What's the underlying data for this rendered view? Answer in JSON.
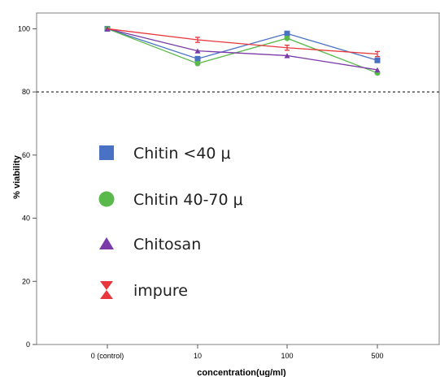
{
  "chart_data": {
    "type": "line",
    "xlabel": "concentration(ug/ml)",
    "ylabel": "% viability",
    "categories": [
      "0 (control)",
      "10",
      "100",
      "500"
    ],
    "ylim": [
      0,
      105
    ],
    "yticks": [
      0,
      20,
      40,
      60,
      80,
      100
    ],
    "grid": false,
    "reference_line": {
      "y": 80,
      "style": "dashed"
    },
    "legend_position": "center-left",
    "series": [
      {
        "name": "Chitin <40 μ",
        "marker": "square",
        "color": "#4a72c4",
        "values": [
          100,
          90.5,
          98.5,
          90
        ]
      },
      {
        "name": "Chitin 40-70 μ",
        "marker": "circle",
        "color": "#59b94a",
        "values": [
          100,
          89,
          97,
          86
        ]
      },
      {
        "name": "Chitosan",
        "marker": "triangle",
        "color": "#7a3aa8",
        "values": [
          100,
          93,
          91.5,
          87
        ]
      },
      {
        "name": "impure",
        "marker": "errorbar",
        "color": "#e8373c",
        "values": [
          100,
          96.5,
          94,
          92
        ],
        "errors": [
          0,
          0.8,
          0.8,
          0.8
        ]
      }
    ]
  }
}
